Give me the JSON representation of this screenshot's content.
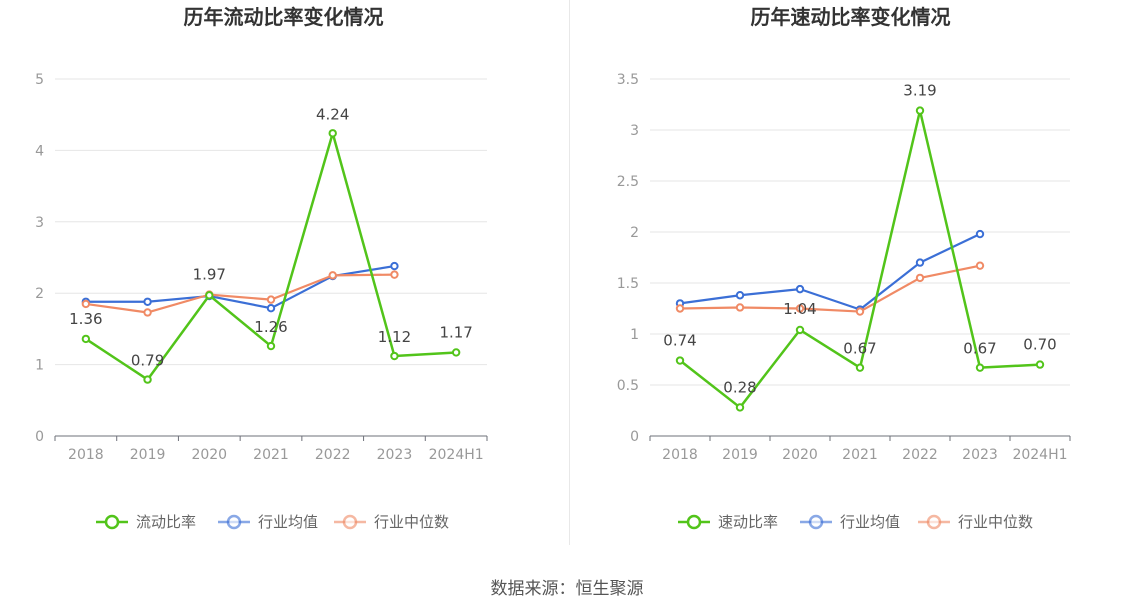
{
  "footer": {
    "source": "数据来源：恒生聚源"
  },
  "chart_data": [
    {
      "type": "line",
      "title": "历年流动比率变化情况",
      "categories": [
        "2018",
        "2019",
        "2020",
        "2021",
        "2022",
        "2023",
        "2024H1"
      ],
      "ylim": [
        0,
        5
      ],
      "yticks": [
        "0",
        "1",
        "2",
        "3",
        "4",
        "5"
      ],
      "grid": true,
      "legend_position": "bottom",
      "series": [
        {
          "name": "流动比率",
          "color": "#52c41a",
          "values": [
            1.36,
            0.79,
            1.97,
            1.26,
            4.24,
            1.12,
            1.17
          ],
          "labels": [
            "1.36",
            "0.79",
            "1.97",
            "1.26",
            "4.24",
            "1.12",
            "1.17"
          ]
        },
        {
          "name": "行业均值",
          "color": "#3b6fd6",
          "values": [
            1.88,
            1.88,
            1.96,
            1.79,
            2.24,
            2.38,
            null
          ]
        },
        {
          "name": "行业中位数",
          "color": "#f08a65",
          "values": [
            1.85,
            1.73,
            1.98,
            1.91,
            2.25,
            2.26,
            null
          ]
        }
      ]
    },
    {
      "type": "line",
      "title": "历年速动比率变化情况",
      "categories": [
        "2018",
        "2019",
        "2020",
        "2021",
        "2022",
        "2023",
        "2024H1"
      ],
      "ylim": [
        0,
        3.5
      ],
      "yticks": [
        "0",
        "0.5",
        "1",
        "1.5",
        "2",
        "2.5",
        "3",
        "3.5"
      ],
      "grid": true,
      "legend_position": "bottom",
      "series": [
        {
          "name": "速动比率",
          "color": "#52c41a",
          "values": [
            0.74,
            0.28,
            1.04,
            0.67,
            3.19,
            0.67,
            0.7
          ],
          "labels": [
            "0.74",
            "0.28",
            "1.04",
            "0.67",
            "3.19",
            "0.67",
            "0.70"
          ]
        },
        {
          "name": "行业均值",
          "color": "#3b6fd6",
          "values": [
            1.3,
            1.38,
            1.44,
            1.24,
            1.7,
            1.98,
            null
          ]
        },
        {
          "name": "行业中位数",
          "color": "#f08a65",
          "values": [
            1.25,
            1.26,
            1.25,
            1.22,
            1.55,
            1.67,
            null
          ]
        }
      ]
    }
  ]
}
